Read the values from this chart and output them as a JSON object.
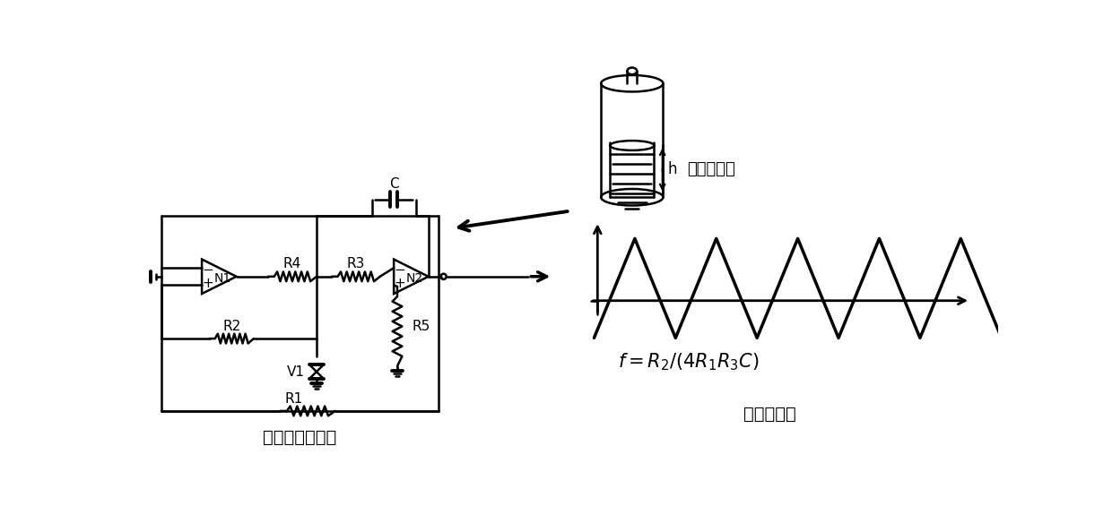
{
  "bg_color": "#ffffff",
  "label_circuit": "三角波振荚电路",
  "label_sensor": "液位传感器",
  "label_wave": "输出三角波",
  "label_h": "h",
  "label_C": "C",
  "label_R1": "R1",
  "label_R2": "R2",
  "label_R3": "R3",
  "label_R4": "R4",
  "label_R5": "R5",
  "label_N1": "N1",
  "label_N2": "N2",
  "label_V1": "V1"
}
